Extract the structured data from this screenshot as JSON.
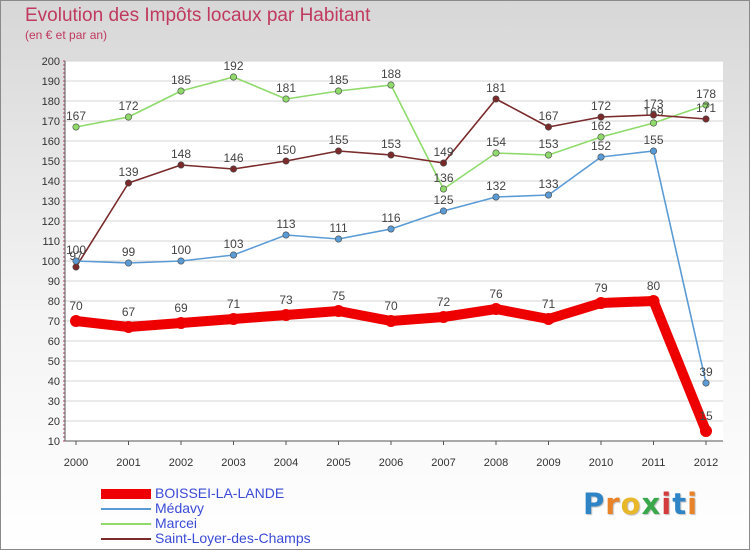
{
  "chart_data": {
    "type": "line",
    "title": "Evolution des Impôts locaux par Habitant",
    "subtitle": "(en € et par an)",
    "x": [
      "2000",
      "2001",
      "2002",
      "2003",
      "2004",
      "2005",
      "2006",
      "2007",
      "2008",
      "2009",
      "2010",
      "2011",
      "2012"
    ],
    "ylim": [
      10,
      200
    ],
    "yticks": [
      "10",
      "20",
      "30",
      "40",
      "50",
      "60",
      "70",
      "80",
      "90",
      "100",
      "110",
      "120",
      "130",
      "140",
      "150",
      "160",
      "170",
      "180",
      "190",
      "200"
    ],
    "grid": "horizontal",
    "series": [
      {
        "name": "BOISSEI-LA-LANDE",
        "color": "#ee0000",
        "values": [
          70,
          67,
          69,
          71,
          73,
          75,
          70,
          72,
          76,
          71,
          79,
          80,
          15
        ],
        "labels": [
          "70",
          "67",
          "69",
          "71",
          "73",
          "75",
          "70",
          "72",
          "76",
          "71",
          "79",
          "80",
          "15"
        ]
      },
      {
        "name": "Médavy",
        "color": "#5b9bd5",
        "values": [
          100,
          99,
          100,
          103,
          113,
          111,
          116,
          125,
          132,
          133,
          152,
          155,
          39
        ],
        "labels": [
          "100",
          "99",
          "100",
          "103",
          "113",
          "111",
          "116",
          "125",
          "132",
          "133",
          "152",
          "155",
          "39"
        ]
      },
      {
        "name": "Marcei",
        "color": "#8fda6b",
        "values": [
          167,
          172,
          185,
          192,
          181,
          185,
          188,
          136,
          154,
          153,
          162,
          169,
          178
        ],
        "labels": [
          "167",
          "172",
          "185",
          "192",
          "181",
          "185",
          "188",
          "136",
          "154",
          "153",
          "162",
          "169",
          "178"
        ]
      },
      {
        "name": "Saint-Loyer-des-Champs",
        "color": "#7a2a2a",
        "values": [
          97,
          139,
          148,
          146,
          150,
          155,
          153,
          149,
          181,
          167,
          172,
          173,
          171
        ],
        "labels": [
          "97",
          "139",
          "148",
          "146",
          "150",
          "155",
          "153",
          "149",
          "181",
          "167",
          "172",
          "173",
          "171"
        ]
      }
    ],
    "legend_position": "bottom-left"
  },
  "logo": {
    "letters": [
      "P",
      "r",
      "o",
      "x",
      "i",
      "t",
      "i"
    ],
    "colors": [
      "#2f84c6",
      "#e8832a",
      "#e8b82a",
      "#3aa84a",
      "#d23c3c",
      "#2f84c6",
      "#e8832a"
    ]
  }
}
